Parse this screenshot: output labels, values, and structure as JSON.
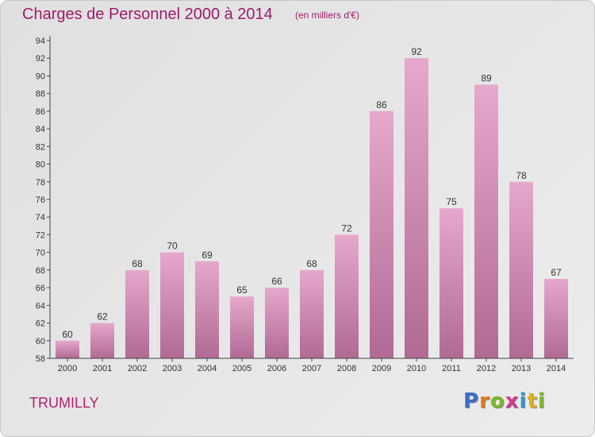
{
  "header": {
    "title": "Charges de Personnel 2000 à 2014",
    "subtitle": "(en milliers d'€)"
  },
  "footer": {
    "commune": "TRUMILLY",
    "logo": [
      "P",
      "r",
      "o",
      "x",
      "i",
      "t",
      "i"
    ]
  },
  "colors": {
    "title": "#a01a6a",
    "bar_top": "#e6a8cc",
    "bar_bottom": "#b06a94",
    "logo": [
      "#3b6fc4",
      "#e07a1f",
      "#7bb82c",
      "#d23a8a",
      "#2c98d4",
      "#e0b01f",
      "#7bb82c"
    ]
  },
  "chart_data": {
    "type": "bar",
    "title": "Charges de Personnel 2000 à 2014",
    "subtitle": "(en milliers d'€)",
    "categories": [
      "2000",
      "2001",
      "2002",
      "2003",
      "2004",
      "2005",
      "2006",
      "2007",
      "2008",
      "2009",
      "2010",
      "2011",
      "2012",
      "2013",
      "2014"
    ],
    "values": [
      60,
      62,
      68,
      70,
      69,
      65,
      66,
      68,
      72,
      86,
      92,
      75,
      89,
      78,
      67
    ],
    "ylim": [
      58,
      94
    ],
    "yticks": [
      58,
      60,
      62,
      64,
      66,
      68,
      70,
      72,
      74,
      76,
      78,
      80,
      82,
      84,
      86,
      88,
      90,
      92,
      94
    ],
    "grid": false
  }
}
